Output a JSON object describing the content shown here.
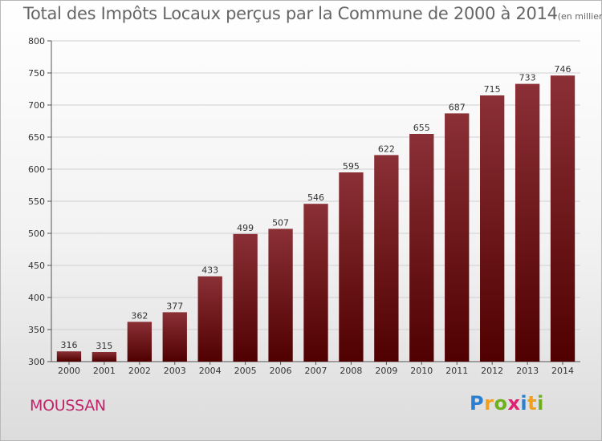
{
  "chart_data": {
    "type": "bar",
    "title": "Total des Impôts Locaux perçus par la Commune de 2000 à 2014",
    "title_unit": "(en milliers d'€)",
    "categories": [
      "2000",
      "2001",
      "2002",
      "2003",
      "2004",
      "2005",
      "2006",
      "2007",
      "2008",
      "2009",
      "2010",
      "2011",
      "2012",
      "2013",
      "2014"
    ],
    "values": [
      316,
      315,
      362,
      377,
      433,
      499,
      507,
      546,
      595,
      622,
      655,
      687,
      715,
      733,
      746
    ],
    "ylim": [
      300,
      800
    ],
    "yticks": [
      300,
      350,
      400,
      450,
      500,
      550,
      600,
      650,
      700,
      750,
      800
    ],
    "grid": true,
    "xlabel": "",
    "ylabel": ""
  },
  "commune": "MOUSSAN",
  "logo": {
    "letters": [
      "P",
      "r",
      "o",
      "x",
      "i",
      "t",
      "i"
    ],
    "colors": [
      "#2a7fd0",
      "#f0a020",
      "#70b020",
      "#e02070",
      "#2a7fd0",
      "#f0a020",
      "#70b020"
    ]
  },
  "colors": {
    "bar_top": "#8a3036",
    "bar_bottom": "#500000",
    "commune": "#c0246a"
  }
}
